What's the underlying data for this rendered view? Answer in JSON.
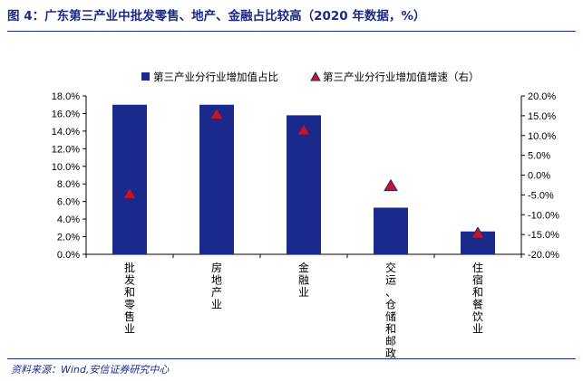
{
  "figure": {
    "title": "图 4：广东第三产业中批发零售、地产、金融占比较高（2020 年数据，%）",
    "source": "资料来源：Wind,安信证券研究中心"
  },
  "colors": {
    "bar": "#1a2a8c",
    "marker": "#d0101a",
    "marker_edge": "#1a2a8c",
    "title": "#1a2a8c"
  },
  "chart_data": {
    "type": "bar",
    "title": "",
    "categories": [
      "批发和零售业",
      "房地产业",
      "金融业",
      "交运、仓储和邮政",
      "住宿和餐饮业"
    ],
    "series": [
      {
        "name": "第三产业分行业增加值占比",
        "type": "bar",
        "axis": "left",
        "values": [
          17.0,
          17.0,
          15.8,
          5.3,
          2.6
        ]
      },
      {
        "name": "第三产业分行业增加值增速（右）",
        "type": "scatter",
        "marker": "triangle",
        "axis": "right",
        "values": [
          -4.8,
          15.3,
          11.3,
          -2.8,
          -14.8
        ]
      }
    ],
    "y_left": {
      "min": 0,
      "max": 18,
      "step": 2,
      "tick_labels": [
        "0.0%",
        "2.0%",
        "4.0%",
        "6.0%",
        "8.0%",
        "10.0%",
        "12.0%",
        "14.0%",
        "16.0%",
        "18.0%"
      ]
    },
    "y_right": {
      "min": -20,
      "max": 20,
      "step": 5,
      "tick_labels": [
        "-20.0%",
        "-15.0%",
        "-10.0%",
        "-5.0%",
        "0.0%",
        "5.0%",
        "10.0%",
        "15.0%",
        "20.0%"
      ]
    },
    "legend_position": "top-center",
    "grid": false
  }
}
